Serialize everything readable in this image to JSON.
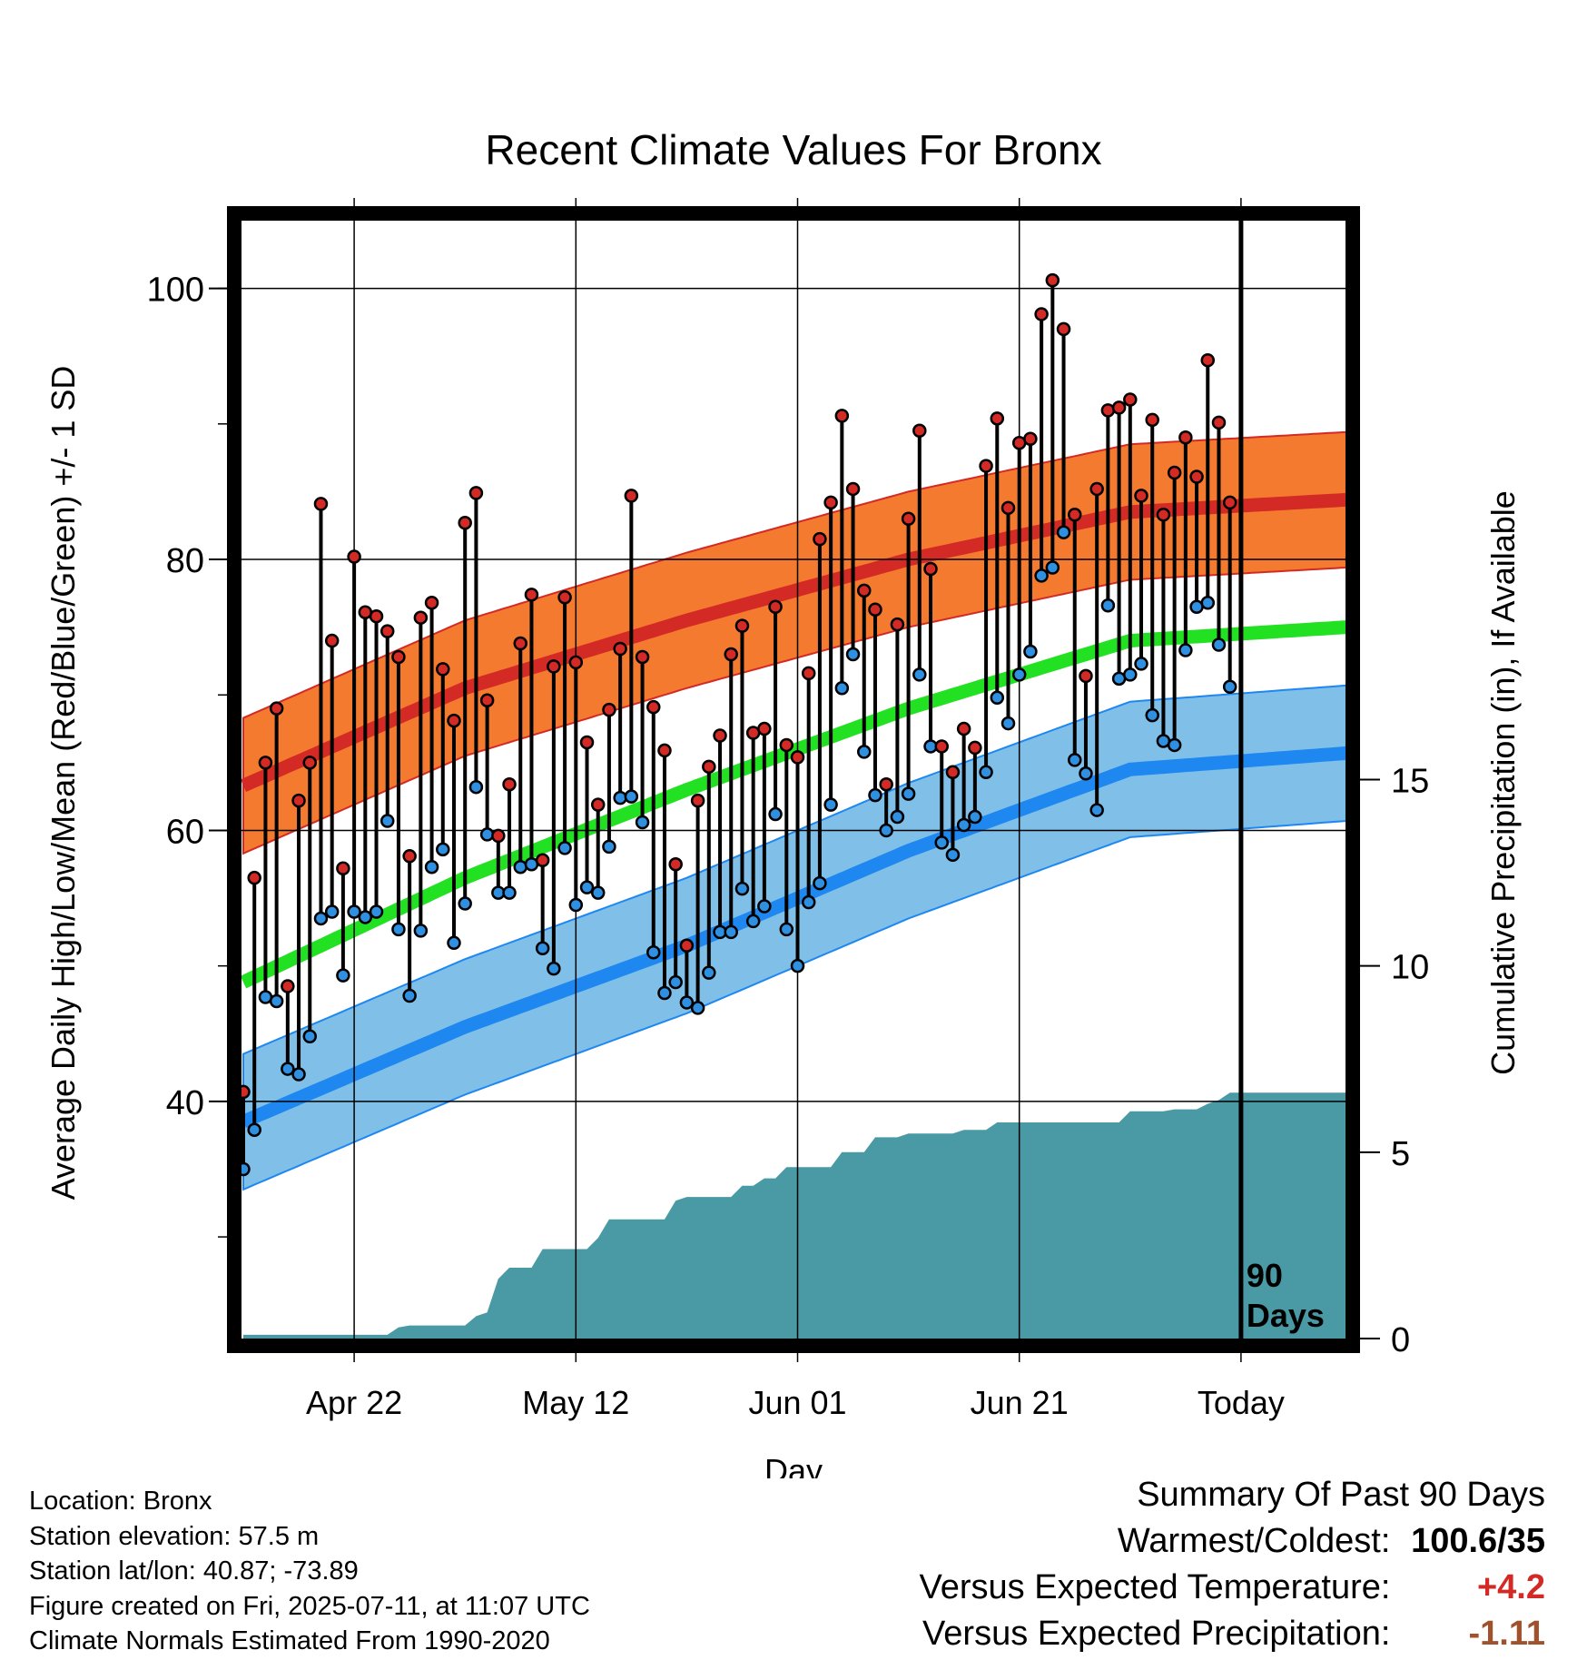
{
  "chart_data": {
    "type": "line",
    "title": "Recent Climate Values For Bronx",
    "xlabel": "Day",
    "ylabel": "Average Daily High/Low/Mean (Red/Blue/Green) +/- 1 SD",
    "y2label": "Cumulative Precipitation (in), If Available",
    "ylim": [
      22.5,
      105
    ],
    "y2lim": [
      0,
      30
    ],
    "yticks": [
      "40",
      "60",
      "80",
      "100"
    ],
    "y2ticks": [
      "0",
      "5",
      "10",
      "15"
    ],
    "xlim": [
      0,
      100
    ],
    "xticks": [
      {
        "day": 10,
        "label": "Apr 22"
      },
      {
        "day": 30,
        "label": "May 12"
      },
      {
        "day": 50,
        "label": "Jun 01"
      },
      {
        "day": 70,
        "label": "Jun 21"
      },
      {
        "day": 90,
        "label": "Today"
      }
    ],
    "today_marker": {
      "day": 90,
      "label_line1": "90",
      "label_line2": "Days"
    },
    "grid": true,
    "colors": {
      "high_band": "#f47a30",
      "high_mean": "#d42a25",
      "mean_line": "#22e022",
      "low_band": "#80c0e8",
      "low_mean": "#1e88f0",
      "precip": "#4a9aa5",
      "high_dot": "#d42a25",
      "low_dot": "#2f8fe0"
    },
    "normal_high": [
      [
        0,
        63.3
      ],
      [
        20,
        70.5
      ],
      [
        40,
        75.5
      ],
      [
        60,
        80.0
      ],
      [
        80,
        83.5
      ],
      [
        99.5,
        84.4
      ]
    ],
    "normal_high_sd": 5,
    "normal_mean": [
      [
        0,
        48.8
      ],
      [
        20,
        56.5
      ],
      [
        40,
        63.0
      ],
      [
        60,
        69.0
      ],
      [
        80,
        74.0
      ],
      [
        99.5,
        75.0
      ]
    ],
    "normal_low": [
      [
        0,
        38.5
      ],
      [
        20,
        45.5
      ],
      [
        40,
        51.5
      ],
      [
        60,
        58.5
      ],
      [
        80,
        64.5
      ],
      [
        99.5,
        65.7
      ]
    ],
    "normal_low_sd": 5,
    "daily_high": [
      40.7,
      56.5,
      65,
      69,
      48.5,
      62.2,
      65,
      84.1,
      74,
      57.2,
      80.2,
      76.1,
      75.8,
      74.7,
      72.8,
      58.1,
      75.7,
      76.8,
      71.9,
      68.1,
      82.7,
      84.9,
      69.6,
      59.6,
      63.4,
      73.8,
      77.4,
      57.8,
      72.1,
      77.2,
      72.4,
      66.5,
      61.9,
      68.9,
      73.4,
      84.7,
      72.8,
      69.1,
      65.9,
      57.5,
      51.5,
      62.2,
      64.7,
      67,
      73,
      75.1,
      67.2,
      67.5,
      76.5,
      66.3,
      65.4,
      71.6,
      81.5,
      84.2,
      90.6,
      85.2,
      77.7,
      76.3,
      63.4,
      75.2,
      83,
      89.5,
      79.3,
      66.2,
      64.3,
      67.5,
      66.1,
      86.9,
      90.4,
      83.8,
      88.6,
      88.9,
      98.1,
      100.6,
      97,
      83.3,
      71.4,
      85.2,
      91,
      91.2,
      91.8,
      84.7,
      90.3,
      83.3,
      86.4,
      89,
      86.1,
      94.7,
      90.1,
      84.2
    ],
    "daily_low": [
      35,
      37.9,
      47.7,
      47.4,
      42.4,
      42,
      44.8,
      53.5,
      54,
      49.3,
      54,
      53.6,
      54,
      60.7,
      52.7,
      47.8,
      52.6,
      57.3,
      58.6,
      51.7,
      54.6,
      63.2,
      59.7,
      55.4,
      55.4,
      57.3,
      57.5,
      51.3,
      49.8,
      58.7,
      54.5,
      55.8,
      55.4,
      58.8,
      62.4,
      62.5,
      60.6,
      51,
      48,
      48.8,
      47.3,
      46.9,
      49.5,
      52.5,
      52.5,
      55.7,
      53.3,
      54.4,
      61.2,
      52.7,
      50,
      54.7,
      56.1,
      61.9,
      70.5,
      73,
      65.8,
      62.6,
      60,
      61,
      62.7,
      71.5,
      66.2,
      59.1,
      58.2,
      60.4,
      61,
      64.3,
      69.8,
      67.9,
      71.5,
      73.2,
      78.8,
      79.4,
      82,
      65.2,
      64.2,
      61.5,
      76.6,
      71.2,
      71.5,
      72.3,
      68.5,
      66.6,
      66.3,
      73.3,
      76.5,
      76.8,
      73.7,
      70.6
    ],
    "cumulative_precip": [
      [
        0,
        0.1
      ],
      [
        13,
        0.1
      ],
      [
        14,
        0.3
      ],
      [
        15,
        0.35
      ],
      [
        20,
        0.35
      ],
      [
        21,
        0.6
      ],
      [
        22,
        0.7
      ],
      [
        23,
        1.6
      ],
      [
        24,
        1.9
      ],
      [
        26,
        1.9
      ],
      [
        27,
        2.4
      ],
      [
        31,
        2.4
      ],
      [
        32,
        2.7
      ],
      [
        33,
        3.2
      ],
      [
        38,
        3.2
      ],
      [
        39,
        3.7
      ],
      [
        40,
        3.8
      ],
      [
        44,
        3.8
      ],
      [
        45,
        4.1
      ],
      [
        46,
        4.1
      ],
      [
        47,
        4.3
      ],
      [
        48,
        4.3
      ],
      [
        49,
        4.6
      ],
      [
        53,
        4.6
      ],
      [
        54,
        5.0
      ],
      [
        56,
        5.0
      ],
      [
        57,
        5.4
      ],
      [
        59,
        5.4
      ],
      [
        60,
        5.5
      ],
      [
        64,
        5.5
      ],
      [
        65,
        5.6
      ],
      [
        67,
        5.6
      ],
      [
        68,
        5.8
      ],
      [
        76,
        5.8
      ],
      [
        77,
        5.8
      ],
      [
        79,
        5.8
      ],
      [
        80,
        6.1
      ],
      [
        83,
        6.1
      ],
      [
        84,
        6.15
      ],
      [
        86,
        6.15
      ],
      [
        87,
        6.3
      ],
      [
        88,
        6.4
      ],
      [
        89,
        6.6
      ],
      [
        99.5,
        6.6
      ]
    ]
  },
  "footer": {
    "location": "Location: Bronx",
    "elevation": "Station elevation: 57.5 m",
    "latlon": "Station lat/lon: 40.87; -73.89",
    "created": "Figure created on Fri, 2025-07-11, at 11:07 UTC",
    "normals": "Climate Normals Estimated From 1990-2020"
  },
  "summary": {
    "heading": "Summary Of Past 90 Days",
    "warmest_label": "Warmest/Coldest:",
    "warmest_value": "100.6/35",
    "temp_label": "Versus Expected Temperature:",
    "temp_value": "+4.2",
    "temp_color": "#d42a25",
    "precip_label": "Versus Expected Precipitation:",
    "precip_value": "-1.11",
    "precip_color": "#a0522d"
  }
}
